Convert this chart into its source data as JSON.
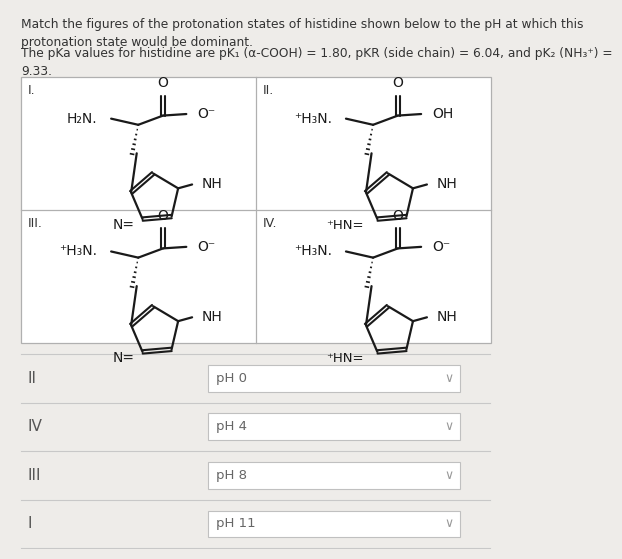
{
  "title_text": "Match the figures of the protonation states of histidine shown below to the pH at which this\nprotonation state would be dominant.",
  "subtitle_text": "The pKa values for histidine are pK₁ (α-COOH) = 1.80, pKR (side chain) = 6.04, and pK₂ (NH₃⁺) =\n9.33.",
  "bg_color": "#eeece9",
  "box_bg": "#ffffff",
  "text_color": "#333333",
  "rows": [
    {
      "label": "II",
      "ph": "pH 0"
    },
    {
      "label": "IV",
      "ph": "pH 4"
    },
    {
      "label": "III",
      "ph": "pH 8"
    },
    {
      "label": "I",
      "ph": "pH 11"
    }
  ],
  "structures": [
    {
      "label": "I.",
      "nh2": "H₂N",
      "cooh": "O⁻",
      "n1h": false,
      "qidx": 0
    },
    {
      "label": "II.",
      "nh2": "⁺H₃N",
      "cooh": "OH",
      "n1h": true,
      "qidx": 1
    },
    {
      "label": "III.",
      "nh2": "⁺H₃N",
      "cooh": "O⁻",
      "n1h": false,
      "qidx": 2
    },
    {
      "label": "IV.",
      "nh2": "⁺H₃N",
      "cooh": "O⁻",
      "n1h": true,
      "qidx": 3
    }
  ]
}
